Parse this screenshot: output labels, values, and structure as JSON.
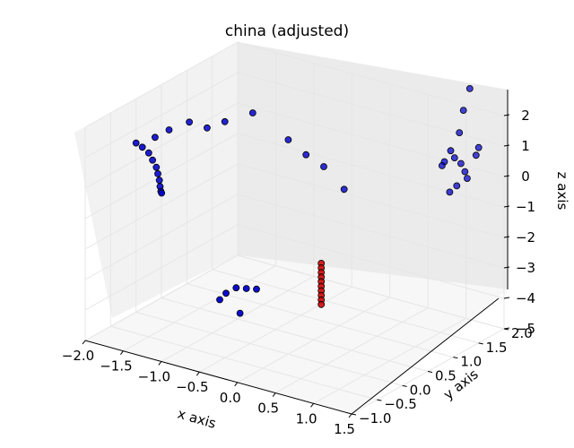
{
  "chart_data": {
    "type": "scatter",
    "title": "china (adjusted)",
    "xlabel": "x axis",
    "ylabel": "y axis",
    "zlabel": "z axis",
    "x_ticks": [
      "−2.0",
      "−1.5",
      "−1.0",
      "−0.5",
      "0.0",
      "0.5",
      "1.0",
      "1.5"
    ],
    "y_ticks": [
      "−1.0",
      "−0.5",
      "0.0",
      "0.5",
      "1.0",
      "1.5",
      "2.0"
    ],
    "z_ticks": [
      "−5",
      "−4",
      "−3",
      "−2",
      "−1",
      "0",
      "1",
      "2"
    ],
    "grid": true,
    "series": [
      {
        "color": "#0000cc",
        "points": [
          [
            -2.0,
            0.0,
            0.55
          ],
          [
            -1.95,
            0.05,
            0.4
          ],
          [
            -1.9,
            0.1,
            0.2
          ],
          [
            -1.85,
            0.1,
            0.0
          ],
          [
            -1.8,
            0.1,
            -0.2
          ],
          [
            -1.78,
            0.1,
            -0.4
          ],
          [
            -1.76,
            0.1,
            -0.6
          ],
          [
            -1.75,
            0.1,
            -0.8
          ],
          [
            -1.74,
            0.1,
            -0.95
          ],
          [
            -1.73,
            0.1,
            -1.0
          ],
          [
            -1.85,
            0.15,
            0.7
          ],
          [
            -1.7,
            0.2,
            1.0
          ],
          [
            -1.5,
            0.3,
            1.3
          ],
          [
            -1.3,
            0.35,
            1.2
          ],
          [
            -1.1,
            0.4,
            1.5
          ],
          [
            -0.8,
            0.5,
            1.9
          ],
          [
            -0.4,
            0.6,
            1.2
          ],
          [
            -0.2,
            0.65,
            0.8
          ],
          [
            0.0,
            0.7,
            0.5
          ],
          [
            0.2,
            0.8,
            -0.2
          ],
          [
            -0.5,
            -0.6,
            -3.0
          ],
          [
            -0.45,
            -0.55,
            -2.8
          ],
          [
            -0.35,
            -0.5,
            -2.6
          ],
          [
            -0.25,
            -0.45,
            -2.6
          ],
          [
            -0.15,
            -0.4,
            -2.6
          ],
          [
            -0.3,
            -0.5,
            -3.4
          ],
          [
            1.2,
            1.4,
            1.2
          ],
          [
            1.25,
            1.4,
            1.0
          ],
          [
            1.3,
            1.45,
            0.8
          ],
          [
            1.32,
            1.5,
            0.5
          ],
          [
            1.35,
            1.5,
            0.3
          ],
          [
            1.28,
            1.4,
            0.1
          ],
          [
            1.22,
            1.35,
            -0.1
          ],
          [
            1.3,
            1.5,
            2.5
          ],
          [
            1.35,
            1.55,
            3.2
          ],
          [
            1.28,
            1.45,
            1.8
          ],
          [
            1.15,
            1.35,
            0.85
          ],
          [
            1.12,
            1.35,
            0.7
          ],
          [
            1.4,
            1.6,
            1.0
          ],
          [
            1.42,
            1.62,
            1.25
          ]
        ]
      },
      {
        "color": "#cc0000",
        "points": [
          [
            0.3,
            0.2,
            -2.0
          ],
          [
            0.3,
            0.2,
            -2.15
          ],
          [
            0.3,
            0.2,
            -2.3
          ],
          [
            0.3,
            0.2,
            -2.45
          ],
          [
            0.3,
            0.2,
            -2.6
          ],
          [
            0.3,
            0.2,
            -2.75
          ],
          [
            0.3,
            0.2,
            -2.9
          ],
          [
            0.3,
            0.2,
            -3.05
          ],
          [
            0.3,
            0.2,
            -3.2
          ],
          [
            0.3,
            0.2,
            -3.35
          ]
        ]
      }
    ]
  }
}
